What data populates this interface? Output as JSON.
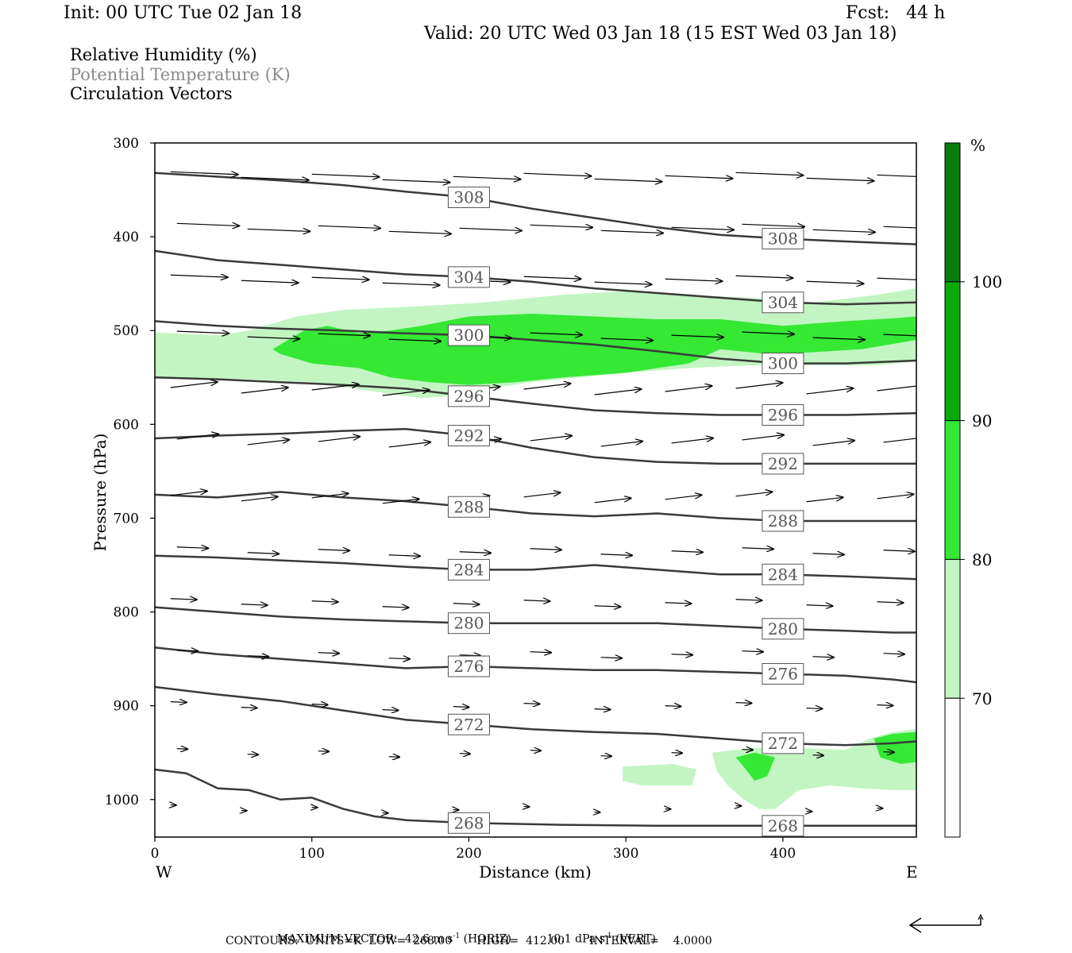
{
  "header": {
    "init": "Init: 00 UTC Tue 02 Jan 18",
    "fcst": "Fcst:   44 h",
    "valid": "Valid: 20 UTC Wed 03 Jan 18 (15 EST Wed 03 Jan 18)"
  },
  "legend_lines": [
    {
      "text": "Relative Humidity (%)",
      "color": "#000000"
    },
    {
      "text": "Potential Temperature (K)",
      "color": "#8a8a8a"
    },
    {
      "text": "Circulation Vectors",
      "color": "#000000"
    }
  ],
  "colorbar": {
    "unit": "%",
    "labels": [
      "100",
      "90",
      "80",
      "70"
    ],
    "colors": [
      "#ffffff",
      "#c2f5c2",
      "#34e834",
      "#0aaa0a",
      "#0a7a0a"
    ]
  },
  "footer": {
    "max_vector_label": "MAXIMUM VECTOR:",
    "horiz_value": "42.6 m s",
    "horiz_unit": "(HORIZ)",
    "vert_value": "10.1 dPa s",
    "vert_unit": "(VERT)",
    "exp": "-1",
    "contours": "CONTOURS:  UNITS=K  LOW=  268.00       HIGH=  412.00       INTERVAL=    4.0000"
  },
  "chart_data": {
    "type": "heatmap",
    "xlabel": "Distance (km)",
    "ylabel": "Pressure (hPa)",
    "xlim": [
      0,
      485
    ],
    "ylim": [
      1040,
      300
    ],
    "xticks": [
      0,
      100,
      200,
      300,
      400
    ],
    "yticks": [
      300,
      400,
      500,
      600,
      700,
      800,
      900,
      1000
    ],
    "x_end_labels": {
      "left": "W",
      "right": "E"
    },
    "rh_levels": [
      70,
      80,
      90,
      100
    ],
    "rh_regions": [
      {
        "level": 70,
        "points": [
          [
            0,
            502
          ],
          [
            40,
            505
          ],
          [
            60,
            500
          ],
          [
            90,
            485
          ],
          [
            120,
            478
          ],
          [
            170,
            474
          ],
          [
            210,
            470
          ],
          [
            260,
            462
          ],
          [
            300,
            458
          ],
          [
            340,
            462
          ],
          [
            380,
            465
          ],
          [
            420,
            470
          ],
          [
            460,
            462
          ],
          [
            485,
            455
          ],
          [
            485,
            533
          ],
          [
            460,
            537
          ],
          [
            420,
            537
          ],
          [
            380,
            537
          ],
          [
            340,
            540
          ],
          [
            300,
            545
          ],
          [
            270,
            550
          ],
          [
            240,
            555
          ],
          [
            220,
            560
          ],
          [
            190,
            570
          ],
          [
            170,
            572
          ],
          [
            140,
            565
          ],
          [
            100,
            555
          ],
          [
            60,
            552
          ],
          [
            20,
            550
          ],
          [
            0,
            550
          ]
        ]
      },
      {
        "level": 80,
        "points": [
          [
            75,
            520
          ],
          [
            95,
            500
          ],
          [
            110,
            495
          ],
          [
            130,
            503
          ],
          [
            150,
            500
          ],
          [
            170,
            495
          ],
          [
            200,
            485
          ],
          [
            240,
            482
          ],
          [
            280,
            485
          ],
          [
            320,
            488
          ],
          [
            360,
            488
          ],
          [
            400,
            495
          ],
          [
            440,
            490
          ],
          [
            470,
            487
          ],
          [
            485,
            485
          ],
          [
            485,
            510
          ],
          [
            450,
            520
          ],
          [
            420,
            523
          ],
          [
            390,
            525
          ],
          [
            360,
            520
          ],
          [
            340,
            535
          ],
          [
            300,
            545
          ],
          [
            260,
            550
          ],
          [
            230,
            555
          ],
          [
            200,
            558
          ],
          [
            175,
            555
          ],
          [
            150,
            550
          ],
          [
            130,
            540
          ],
          [
            100,
            535
          ],
          [
            80,
            525
          ]
        ]
      },
      {
        "level": 70,
        "points": [
          [
            298,
            965
          ],
          [
            330,
            962
          ],
          [
            345,
            968
          ],
          [
            342,
            985
          ],
          [
            310,
            985
          ],
          [
            298,
            980
          ]
        ]
      },
      {
        "level": 70,
        "points": [
          [
            355,
            950
          ],
          [
            380,
            945
          ],
          [
            410,
            945
          ],
          [
            440,
            947
          ],
          [
            455,
            935
          ],
          [
            470,
            928
          ],
          [
            485,
            925
          ],
          [
            485,
            990
          ],
          [
            470,
            990
          ],
          [
            450,
            988
          ],
          [
            430,
            985
          ],
          [
            410,
            990
          ],
          [
            395,
            1010
          ],
          [
            385,
            1010
          ],
          [
            375,
            1000
          ],
          [
            365,
            985
          ],
          [
            358,
            970
          ]
        ]
      },
      {
        "level": 80,
        "points": [
          [
            370,
            955
          ],
          [
            382,
            950
          ],
          [
            395,
            955
          ],
          [
            390,
            975
          ],
          [
            382,
            980
          ],
          [
            375,
            965
          ]
        ]
      },
      {
        "level": 80,
        "points": [
          [
            458,
            935
          ],
          [
            470,
            930
          ],
          [
            485,
            928
          ],
          [
            485,
            960
          ],
          [
            475,
            962
          ],
          [
            462,
            955
          ]
        ]
      }
    ],
    "theta_contours": [
      {
        "label": "268",
        "points": [
          [
            0,
            968
          ],
          [
            20,
            972
          ],
          [
            40,
            988
          ],
          [
            60,
            990
          ],
          [
            80,
            1000
          ],
          [
            100,
            998
          ],
          [
            120,
            1010
          ],
          [
            140,
            1018
          ],
          [
            160,
            1022
          ],
          [
            200,
            1025
          ],
          [
            260,
            1027
          ],
          [
            320,
            1028
          ],
          [
            400,
            1028
          ],
          [
            485,
            1028
          ]
        ]
      },
      {
        "label": "272",
        "points": [
          [
            0,
            880
          ],
          [
            40,
            888
          ],
          [
            80,
            895
          ],
          [
            120,
            905
          ],
          [
            160,
            915
          ],
          [
            200,
            920
          ],
          [
            240,
            925
          ],
          [
            280,
            928
          ],
          [
            320,
            930
          ],
          [
            360,
            935
          ],
          [
            400,
            940
          ],
          [
            440,
            942
          ],
          [
            470,
            940
          ],
          [
            485,
            938
          ]
        ]
      },
      {
        "label": "276",
        "points": [
          [
            0,
            838
          ],
          [
            40,
            845
          ],
          [
            80,
            850
          ],
          [
            120,
            855
          ],
          [
            160,
            860
          ],
          [
            200,
            858
          ],
          [
            240,
            860
          ],
          [
            280,
            862
          ],
          [
            320,
            862
          ],
          [
            360,
            864
          ],
          [
            400,
            866
          ],
          [
            440,
            868
          ],
          [
            470,
            872
          ],
          [
            485,
            875
          ]
        ]
      },
      {
        "label": "280",
        "points": [
          [
            0,
            795
          ],
          [
            40,
            800
          ],
          [
            80,
            805
          ],
          [
            120,
            808
          ],
          [
            160,
            810
          ],
          [
            200,
            812
          ],
          [
            240,
            812
          ],
          [
            280,
            812
          ],
          [
            320,
            812
          ],
          [
            360,
            815
          ],
          [
            400,
            818
          ],
          [
            440,
            820
          ],
          [
            470,
            822
          ],
          [
            485,
            822
          ]
        ]
      },
      {
        "label": "284",
        "points": [
          [
            0,
            740
          ],
          [
            40,
            742
          ],
          [
            80,
            745
          ],
          [
            120,
            748
          ],
          [
            160,
            752
          ],
          [
            200,
            755
          ],
          [
            240,
            755
          ],
          [
            280,
            750
          ],
          [
            320,
            755
          ],
          [
            360,
            760
          ],
          [
            400,
            760
          ],
          [
            440,
            762
          ],
          [
            485,
            765
          ]
        ]
      },
      {
        "label": "288",
        "points": [
          [
            0,
            675
          ],
          [
            40,
            678
          ],
          [
            80,
            672
          ],
          [
            120,
            678
          ],
          [
            160,
            682
          ],
          [
            200,
            688
          ],
          [
            240,
            695
          ],
          [
            280,
            698
          ],
          [
            320,
            695
          ],
          [
            360,
            700
          ],
          [
            400,
            703
          ],
          [
            440,
            703
          ],
          [
            485,
            703
          ]
        ]
      },
      {
        "label": "292",
        "points": [
          [
            0,
            615
          ],
          [
            40,
            612
          ],
          [
            80,
            610
          ],
          [
            120,
            607
          ],
          [
            160,
            605
          ],
          [
            200,
            612
          ],
          [
            240,
            625
          ],
          [
            280,
            635
          ],
          [
            320,
            640
          ],
          [
            360,
            642
          ],
          [
            400,
            642
          ],
          [
            440,
            642
          ],
          [
            485,
            642
          ]
        ]
      },
      {
        "label": "296",
        "points": [
          [
            0,
            550
          ],
          [
            40,
            552
          ],
          [
            80,
            555
          ],
          [
            120,
            558
          ],
          [
            160,
            562
          ],
          [
            200,
            570
          ],
          [
            240,
            578
          ],
          [
            280,
            585
          ],
          [
            320,
            588
          ],
          [
            360,
            590
          ],
          [
            400,
            590
          ],
          [
            440,
            590
          ],
          [
            485,
            588
          ]
        ]
      },
      {
        "label": "300",
        "points": [
          [
            0,
            490
          ],
          [
            40,
            495
          ],
          [
            80,
            498
          ],
          [
            120,
            500
          ],
          [
            160,
            503
          ],
          [
            200,
            505
          ],
          [
            240,
            510
          ],
          [
            280,
            515
          ],
          [
            320,
            522
          ],
          [
            360,
            530
          ],
          [
            400,
            535
          ],
          [
            440,
            535
          ],
          [
            485,
            532
          ]
        ]
      },
      {
        "label": "304",
        "points": [
          [
            0,
            415
          ],
          [
            40,
            425
          ],
          [
            80,
            430
          ],
          [
            120,
            435
          ],
          [
            160,
            440
          ],
          [
            200,
            443
          ],
          [
            240,
            448
          ],
          [
            280,
            455
          ],
          [
            320,
            460
          ],
          [
            360,
            465
          ],
          [
            400,
            470
          ],
          [
            440,
            472
          ],
          [
            485,
            470
          ]
        ]
      },
      {
        "label": "308",
        "points": [
          [
            0,
            332
          ],
          [
            40,
            336
          ],
          [
            80,
            340
          ],
          [
            120,
            345
          ],
          [
            160,
            352
          ],
          [
            200,
            358
          ],
          [
            240,
            370
          ],
          [
            280,
            380
          ],
          [
            320,
            390
          ],
          [
            360,
            398
          ],
          [
            400,
            402
          ],
          [
            440,
            405
          ],
          [
            485,
            408
          ]
        ]
      }
    ]
  }
}
